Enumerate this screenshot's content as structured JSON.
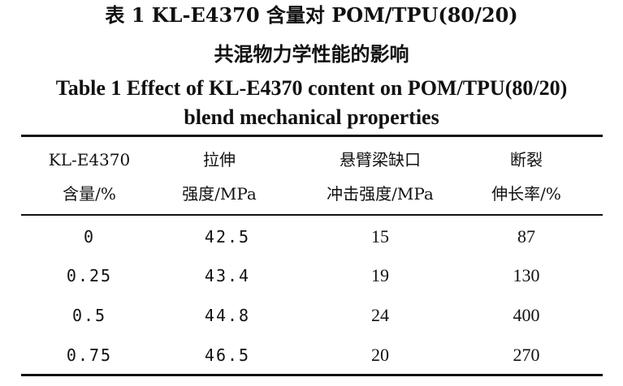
{
  "title": {
    "zh_line1": "表 1    KL-E4370 含量对 POM/TPU(80/20)",
    "zh_line2": "共混物力学性能的影响",
    "en_line1": "Table 1   Effect of KL-E4370 content on POM/TPU(80/20)",
    "en_line2": "blend mechanical properties"
  },
  "table": {
    "headers": [
      [
        "KL-E4370",
        "含量/%"
      ],
      [
        "拉伸",
        "强度/MPa"
      ],
      [
        "悬臂梁缺口",
        "冲击强度/MPa"
      ],
      [
        "断裂",
        "伸长率/%"
      ]
    ],
    "rows": [
      [
        "0",
        "42.5",
        "15",
        "87"
      ],
      [
        "0.25",
        "43.4",
        "19",
        "130"
      ],
      [
        "0.5",
        "44.8",
        "24",
        "400"
      ],
      [
        "0.75",
        "46.5",
        "20",
        "270"
      ]
    ]
  }
}
